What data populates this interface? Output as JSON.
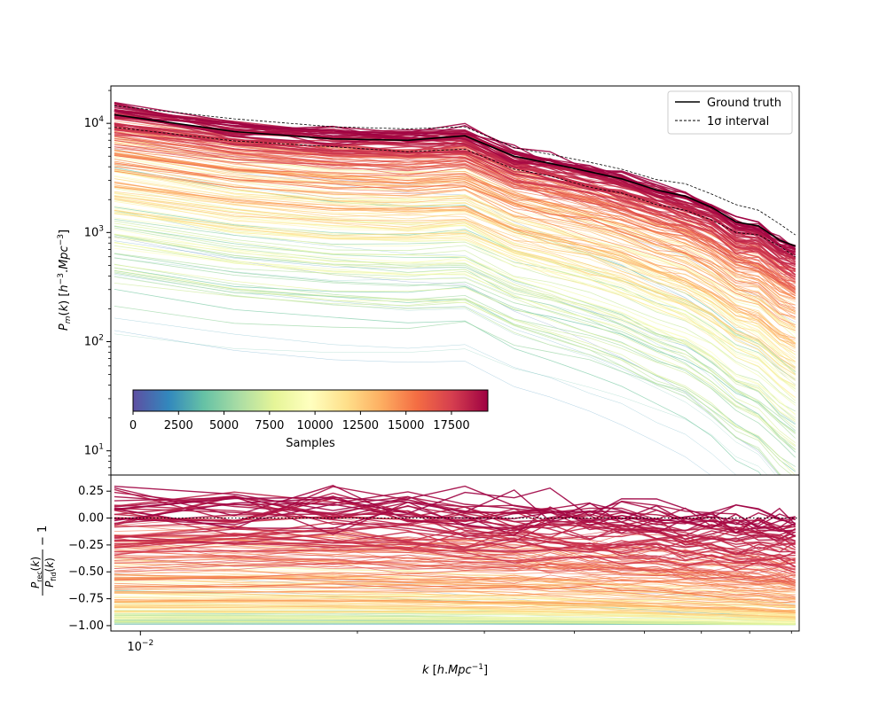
{
  "chart_data": [
    {
      "type": "line",
      "panel": "top",
      "ylabel": "P_m(k) [h^-3.Mpc^3]",
      "xscale": "log",
      "yscale": "log",
      "xlim": [
        0.0091,
        0.082
      ],
      "ylim": [
        6,
        22000
      ],
      "yticks": [
        {
          "value": 10,
          "base": "10",
          "exp": "1"
        },
        {
          "value": 100,
          "base": "10",
          "exp": "2"
        },
        {
          "value": 1000,
          "base": "10",
          "exp": "3"
        },
        {
          "value": 10000,
          "base": "10",
          "exp": "4"
        }
      ],
      "k": [
        0.0092,
        0.0135,
        0.0185,
        0.0235,
        0.0282,
        0.033,
        0.037,
        0.042,
        0.0465,
        0.052,
        0.057,
        0.062,
        0.067,
        0.072,
        0.077,
        0.081
      ],
      "ground_truth": [
        12000,
        8400,
        7200,
        7000,
        7700,
        5000,
        4300,
        3600,
        3100,
        2450,
        2150,
        1700,
        1250,
        1150,
        850,
        750
      ],
      "sigma_upper": [
        14500,
        11000,
        9300,
        8900,
        9300,
        6000,
        5200,
        4400,
        3800,
        3050,
        2800,
        2250,
        1800,
        1600,
        1200,
        950
      ],
      "sigma_lower": [
        9200,
        6900,
        6100,
        5500,
        5800,
        3800,
        3300,
        2600,
        2300,
        1800,
        1600,
        1300,
        1000,
        950,
        750,
        600
      ],
      "legend": {
        "position": "upper right",
        "entries": [
          {
            "label": "Ground truth",
            "style": "solid",
            "color": "#000000"
          },
          {
            "label": "1σ interval",
            "style": "dashed",
            "color": "#000000"
          }
        ]
      },
      "colorbar": {
        "label": "Samples",
        "range": [
          0,
          19500
        ],
        "ticks": [
          "0",
          "2500",
          "5000",
          "7500",
          "10000",
          "12500",
          "15000",
          "17500"
        ],
        "colormap": "Spectral_r",
        "colors": [
          "#5e4fa2",
          "#3288bd",
          "#66c2a5",
          "#abdda4",
          "#e6f598",
          "#ffffbf",
          "#fee08b",
          "#fdae61",
          "#f46d43",
          "#d53e4f",
          "#9e0142"
        ]
      }
    },
    {
      "type": "line",
      "panel": "bottom",
      "ylabel": "P_rec(k)/P_fid(k) − 1",
      "xlabel": "k [h.Mpc^-1]",
      "xscale": "log",
      "ylim": [
        -1.05,
        0.4
      ],
      "yticks": [
        "0.25",
        "0.00",
        "−0.25",
        "−0.50",
        "−0.75",
        "−1.00"
      ],
      "ytick_values": [
        0.25,
        0,
        -0.25,
        -0.5,
        -0.75,
        -1
      ],
      "xticks": [
        {
          "value": 0.01,
          "base": "10",
          "exp": "−2"
        }
      ],
      "reference_line": {
        "y": 0,
        "style": "dotted"
      }
    }
  ]
}
